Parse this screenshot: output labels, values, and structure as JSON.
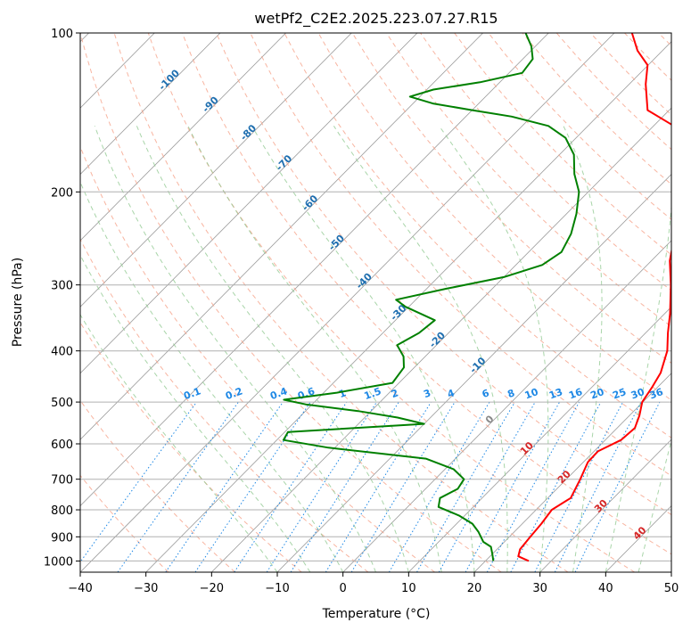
{
  "chart_data": {
    "type": "line",
    "title": "wetPf2_C2E2.2025.223.07.27.R15",
    "xlabel": "Temperature (°C)",
    "ylabel": "Pressure (hPa)",
    "xlim": [
      -40,
      50
    ],
    "ylim": [
      1050,
      100
    ],
    "y_scale": "log",
    "skew": "skew-T",
    "x_ticks": [
      "−40",
      "−30",
      "−20",
      "−10",
      "0",
      "10",
      "20",
      "30",
      "40",
      "50"
    ],
    "x_tick_values": [
      -40,
      -30,
      -20,
      -10,
      0,
      10,
      20,
      30,
      40,
      50
    ],
    "y_ticks": [
      "100",
      "200",
      "300",
      "400",
      "500",
      "600",
      "700",
      "800",
      "900",
      "1000"
    ],
    "y_tick_values": [
      100,
      200,
      300,
      400,
      500,
      600,
      700,
      800,
      900,
      1000
    ],
    "grid": true,
    "series": [
      {
        "kind": "temperature",
        "color": "#ff0000",
        "points": [
          [
            1000,
            26.6
          ],
          [
            980,
            24.3
          ],
          [
            950,
            23.5
          ],
          [
            900,
            23.2
          ],
          [
            850,
            22.9
          ],
          [
            800,
            22.4
          ],
          [
            760,
            23.5
          ],
          [
            700,
            22.1
          ],
          [
            650,
            20.7
          ],
          [
            620,
            20.6
          ],
          [
            590,
            22.4
          ],
          [
            560,
            22.7
          ],
          [
            530,
            21.5
          ],
          [
            500,
            19.9
          ],
          [
            470,
            19.2
          ],
          [
            440,
            18.3
          ],
          [
            400,
            16.0
          ],
          [
            370,
            13.4
          ],
          [
            340,
            10.8
          ],
          [
            300,
            6.6
          ],
          [
            270,
            2.8
          ],
          [
            240,
            -0.5
          ],
          [
            215,
            -3.4
          ],
          [
            200,
            -5.2
          ],
          [
            185,
            -7.1
          ],
          [
            170,
            -10.1
          ],
          [
            160,
            -12.4
          ],
          [
            150,
            -16.9
          ],
          [
            140,
            -23.3
          ],
          [
            125,
            -27.5
          ],
          [
            115,
            -30.1
          ],
          [
            108,
            -33.8
          ],
          [
            100,
            -37.3
          ]
        ]
      },
      {
        "kind": "dewpoint",
        "color": "#008000",
        "points": [
          [
            1000,
            21.2
          ],
          [
            970,
            20.0
          ],
          [
            940,
            18.7
          ],
          [
            920,
            16.8
          ],
          [
            880,
            14.5
          ],
          [
            850,
            12.4
          ],
          [
            820,
            9.1
          ],
          [
            790,
            4.7
          ],
          [
            760,
            3.6
          ],
          [
            730,
            4.9
          ],
          [
            700,
            4.4
          ],
          [
            670,
            1.3
          ],
          [
            640,
            -4.5
          ],
          [
            610,
            -21.0
          ],
          [
            590,
            -29.0
          ],
          [
            570,
            -29.5
          ],
          [
            550,
            -10.0
          ],
          [
            535,
            -15.0
          ],
          [
            520,
            -22.0
          ],
          [
            505,
            -31.0
          ],
          [
            495,
            -35.0
          ],
          [
            480,
            -28.0
          ],
          [
            460,
            -21.0
          ],
          [
            430,
            -21.6
          ],
          [
            410,
            -23.3
          ],
          [
            390,
            -26.0
          ],
          [
            370,
            -24.5
          ],
          [
            350,
            -24.0
          ],
          [
            330,
            -30.5
          ],
          [
            320,
            -33.0
          ],
          [
            305,
            -27.0
          ],
          [
            290,
            -20.0
          ],
          [
            275,
            -16.0
          ],
          [
            260,
            -15.0
          ],
          [
            240,
            -16.3
          ],
          [
            220,
            -18.5
          ],
          [
            200,
            -21.4
          ],
          [
            185,
            -24.8
          ],
          [
            170,
            -27.8
          ],
          [
            158,
            -31.6
          ],
          [
            150,
            -36.0
          ],
          [
            144,
            -43.0
          ],
          [
            140,
            -50.0
          ],
          [
            136,
            -57.0
          ],
          [
            132,
            -61.5
          ],
          [
            128,
            -59.0
          ],
          [
            124,
            -53.0
          ],
          [
            119,
            -48.0
          ],
          [
            112,
            -48.5
          ],
          [
            106,
            -50.6
          ],
          [
            100,
            -53.5
          ]
        ]
      }
    ],
    "background_lines": {
      "dry_adiabat_labels": [
        "-100",
        "-90",
        "-80",
        "-70",
        "-60",
        "-50",
        "-40",
        "-30",
        "-20",
        "-10"
      ],
      "moist_adiabat_labels": [
        "0",
        "10",
        "20",
        "30",
        "40"
      ],
      "mixing_ratio_labels": [
        "0.1",
        "0.2",
        "0.4",
        "0.6",
        "1",
        "1.5",
        "2",
        "3",
        "4",
        "6",
        "8",
        "10",
        "13",
        "16",
        "20",
        "25",
        "30",
        "36"
      ]
    },
    "colors": {
      "temperature": "#ff0000",
      "dewpoint": "#008000",
      "dry_adiabat": "#f6a38a",
      "moist_adiabat": "#8cc78c",
      "mixing_ratio": "#1e88e5",
      "isotherm": "#9a9a9a"
    }
  }
}
